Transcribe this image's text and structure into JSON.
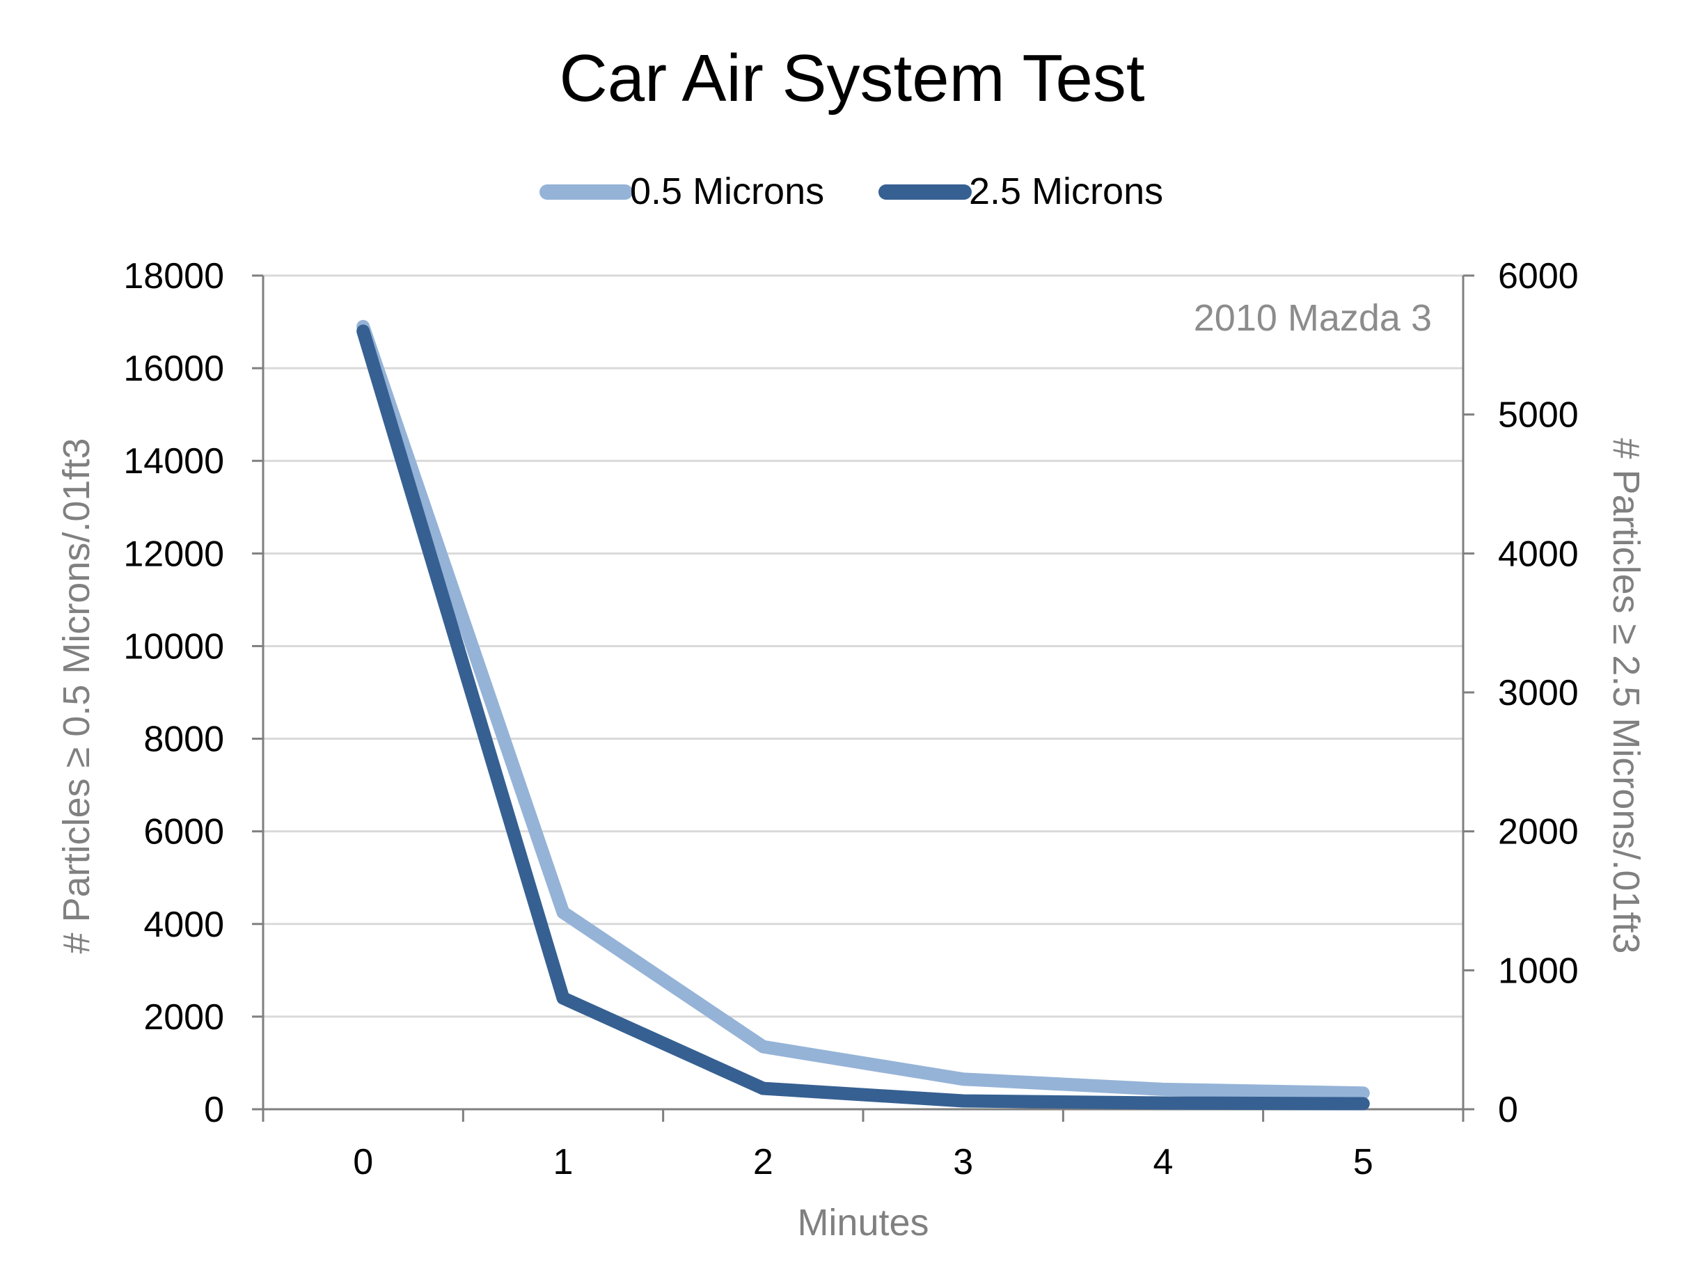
{
  "chart_data": {
    "type": "line",
    "title": "Car Air System Test",
    "annotation": "2010 Mazda 3",
    "xlabel": "Minutes",
    "ylabel_left": "# Particles ≥ 0.5 Microns/.01ft3",
    "ylabel_right": "# Particles ≥ 2.5 Microns/.01ft3",
    "x": [
      0,
      1,
      2,
      3,
      4,
      5
    ],
    "x_tick_labels": [
      "0",
      "1",
      "2",
      "3",
      "4",
      "5"
    ],
    "ylim_left": [
      0,
      18000
    ],
    "y_ticks_left": [
      "0",
      "2000",
      "4000",
      "6000",
      "8000",
      "10000",
      "12000",
      "14000",
      "16000",
      "18000"
    ],
    "ylim_right": [
      0,
      6000
    ],
    "y_ticks_right": [
      "0",
      "1000",
      "2000",
      "3000",
      "4000",
      "5000",
      "6000"
    ],
    "grid": true,
    "legend_position": "top",
    "series": [
      {
        "name": "0.5 Microns",
        "axis": "left",
        "color": "#95b3d7",
        "values": [
          16900,
          4250,
          1350,
          650,
          430,
          350
        ]
      },
      {
        "name": "2.5 Microns",
        "axis": "right",
        "color": "#366092",
        "values": [
          5600,
          800,
          150,
          60,
          45,
          40
        ]
      }
    ]
  }
}
